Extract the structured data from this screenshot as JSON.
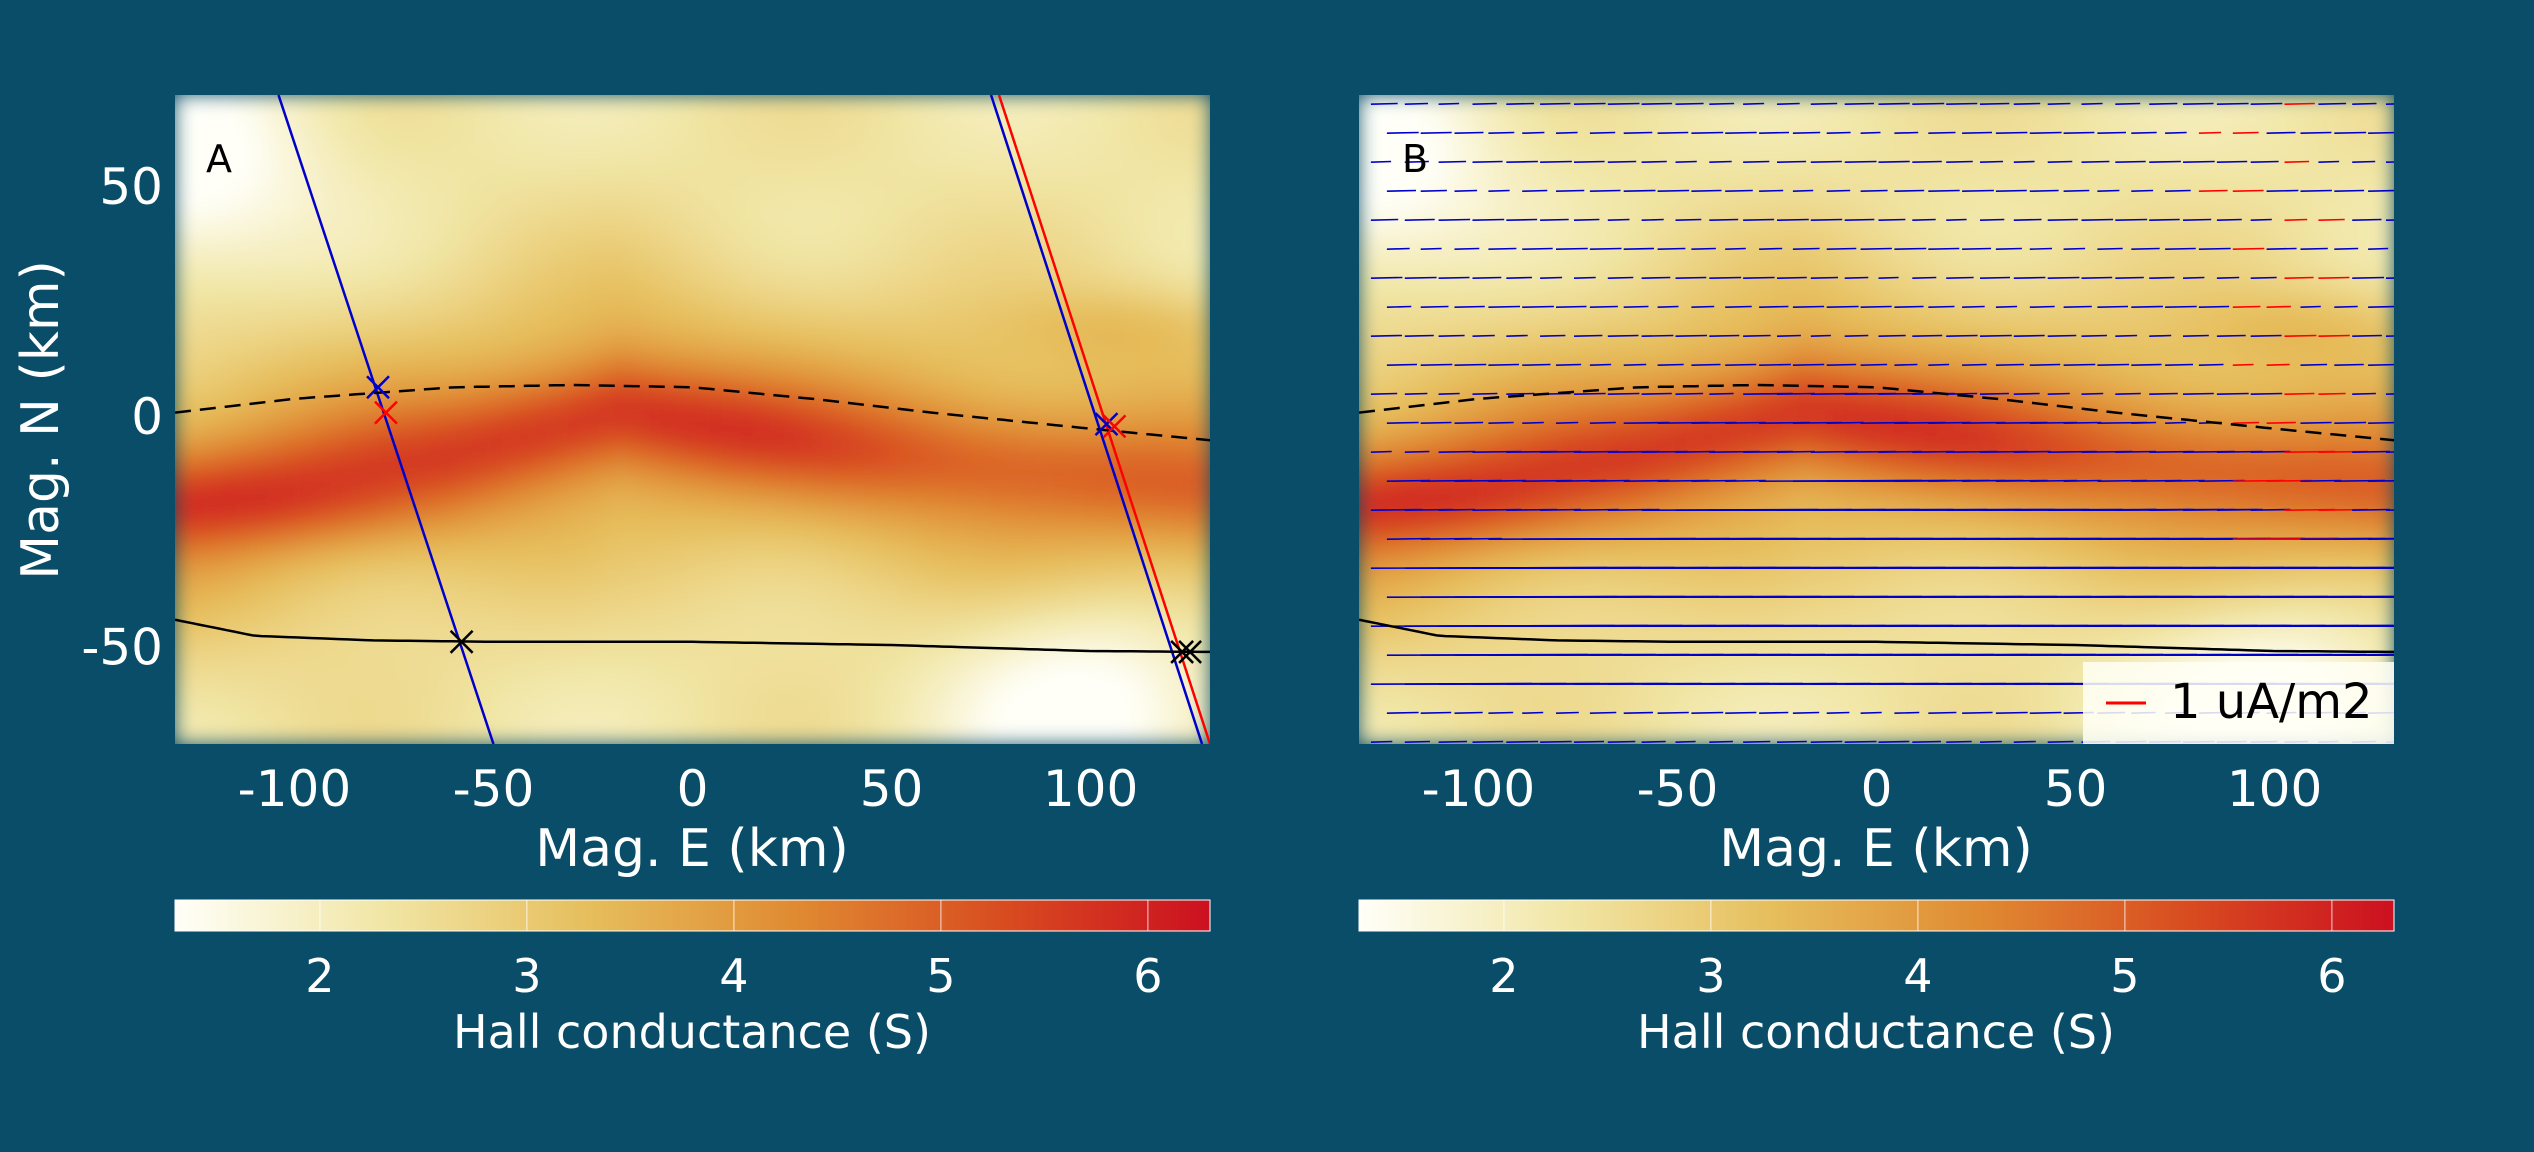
{
  "colors": {
    "background": "#094d69",
    "text": "#ffffff",
    "track_a": "#0000cc",
    "track_b": "#ff0000",
    "boundary": "#000000"
  },
  "colormap": [
    "#fffff8",
    "#f1e6a6",
    "#e6be5c",
    "#e08a32",
    "#d84c20",
    "#cc1020"
  ],
  "chart_data": [
    {
      "type": "heatmap",
      "panel": "A",
      "xlabel": "Mag. E (km)",
      "ylabel": "Mag. N (km)",
      "xlim": [
        -130,
        130
      ],
      "ylim": [
        -71,
        70
      ],
      "xticks": [
        -100,
        -50,
        0,
        50,
        100
      ],
      "yticks": [
        50,
        0,
        -50
      ],
      "field": "Hall conductance (S)",
      "field_range": [
        1.3,
        6.3
      ],
      "field_features": [
        {
          "kind": "ridge",
          "centerline": [
            [
              -130,
              -18
            ],
            [
              -60,
              -8
            ],
            [
              -18,
              1
            ],
            [
              40,
              -7
            ],
            [
              130,
              -16
            ]
          ],
          "peak": 6.2,
          "base": 4.4
        },
        {
          "kind": "low",
          "x": -130,
          "y": 55,
          "value": 1.3
        },
        {
          "kind": "low",
          "x": 100,
          "y": -62,
          "value": 2.0
        }
      ],
      "boundary_dashed": {
        "x": [
          -130,
          -100,
          -60,
          -30,
          0,
          30,
          60,
          100,
          130
        ],
        "y": [
          1,
          4,
          6.5,
          7,
          6.5,
          4,
          1,
          -2.5,
          -5
        ]
      },
      "boundary_solid": {
        "x": [
          -130,
          -110,
          -80,
          -50,
          0,
          50,
          100,
          130
        ],
        "y": [
          -44,
          -47.5,
          -48.5,
          -48.8,
          -48.8,
          -49.5,
          -50.8,
          -51
        ]
      },
      "tracks": [
        {
          "color": "#0000cc",
          "x": [
            -104,
            -50
          ],
          "y": [
            70,
            -71
          ]
        },
        {
          "color": "#0000cc",
          "x": [
            75,
            128
          ],
          "y": [
            70,
            -71
          ]
        },
        {
          "color": "#ff0000",
          "x": [
            77,
            130
          ],
          "y": [
            70,
            -71
          ]
        }
      ],
      "markers": [
        {
          "x": -79,
          "y": 6.5,
          "color": "#0000cc"
        },
        {
          "x": -77,
          "y": 1,
          "color": "#ff0000"
        },
        {
          "x": -58,
          "y": -48.8,
          "color": "#000000"
        },
        {
          "x": 104,
          "y": -1.5,
          "color": "#0000cc"
        },
        {
          "x": 106,
          "y": -2,
          "color": "#ff0000"
        },
        {
          "x": 123,
          "y": -51,
          "color": "#000000"
        },
        {
          "x": 125,
          "y": -51,
          "color": "#000000"
        }
      ],
      "panel_label": "A"
    },
    {
      "type": "heatmap",
      "panel": "B",
      "xlabel": "Mag. E (km)",
      "xlim": [
        -130,
        130
      ],
      "ylim": [
        -71,
        70
      ],
      "xticks": [
        -100,
        -50,
        0,
        50,
        100
      ],
      "field": "Hall conductance (S)",
      "field_range": [
        1.3,
        6.3
      ],
      "vector_field": {
        "description": "horizontal current vectors, mostly eastward",
        "legend": "1 uA/m2",
        "legend_color": "#ff0000",
        "vector_color": "#0000cc",
        "highlight_color": "#ff0000",
        "grid_dx": 8.5,
        "grid_dy": 6.3
      },
      "boundary_dashed": {
        "x": [
          -130,
          -100,
          -60,
          -30,
          0,
          30,
          60,
          100,
          130
        ],
        "y": [
          1,
          4,
          6.5,
          7,
          6.5,
          4,
          1,
          -2.5,
          -5
        ]
      },
      "boundary_solid": {
        "x": [
          -130,
          -110,
          -80,
          -50,
          0,
          50,
          100,
          130
        ],
        "y": [
          -44,
          -47.5,
          -48.5,
          -48.8,
          -48.8,
          -49.5,
          -50.8,
          -51
        ]
      },
      "panel_label": "B"
    }
  ],
  "colorbars": [
    {
      "label": "Hall conductance (S)",
      "ticks": [
        "2",
        "3",
        "4",
        "5",
        "6"
      ],
      "tick_values": [
        2,
        3,
        4,
        5,
        6
      ],
      "range": [
        1.3,
        6.3
      ]
    },
    {
      "label": "Hall conductance (S)",
      "ticks": [
        "2",
        "3",
        "4",
        "5",
        "6"
      ],
      "tick_values": [
        2,
        3,
        4,
        5,
        6
      ],
      "range": [
        1.3,
        6.3
      ]
    }
  ],
  "legend": {
    "label": "1 uA/m2"
  }
}
